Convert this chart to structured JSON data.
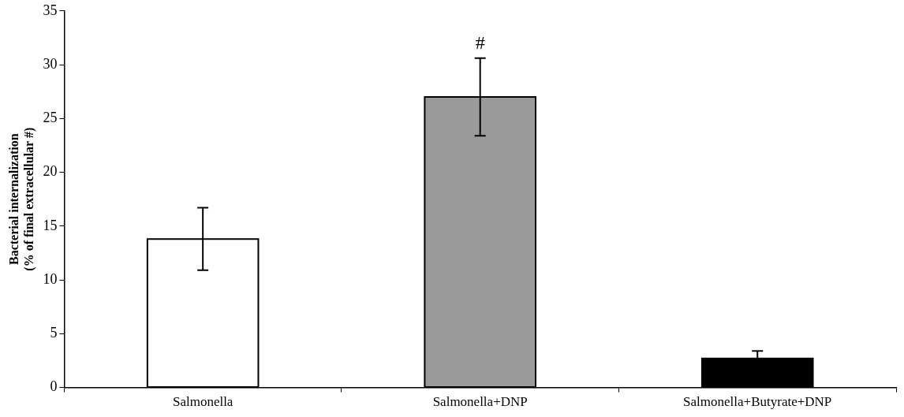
{
  "chart_data": {
    "type": "bar",
    "ylabel": "Bacterial internalization\n(% of final extracellular #)",
    "categories": [
      "Salmonella",
      "Salmonella+DNP",
      "Salmonella+Butyrate+DNP"
    ],
    "values": [
      13.8,
      27,
      2.7
    ],
    "errors": [
      2.9,
      3.6,
      0.7
    ],
    "colors": [
      "#ffffff",
      "#9a9a9a",
      "#000000"
    ],
    "ylim": [
      0,
      35
    ],
    "yticks": [
      0,
      5,
      10,
      15,
      20,
      25,
      30,
      35
    ],
    "grid": false,
    "legend": false,
    "annotations": [
      "#"
    ]
  }
}
